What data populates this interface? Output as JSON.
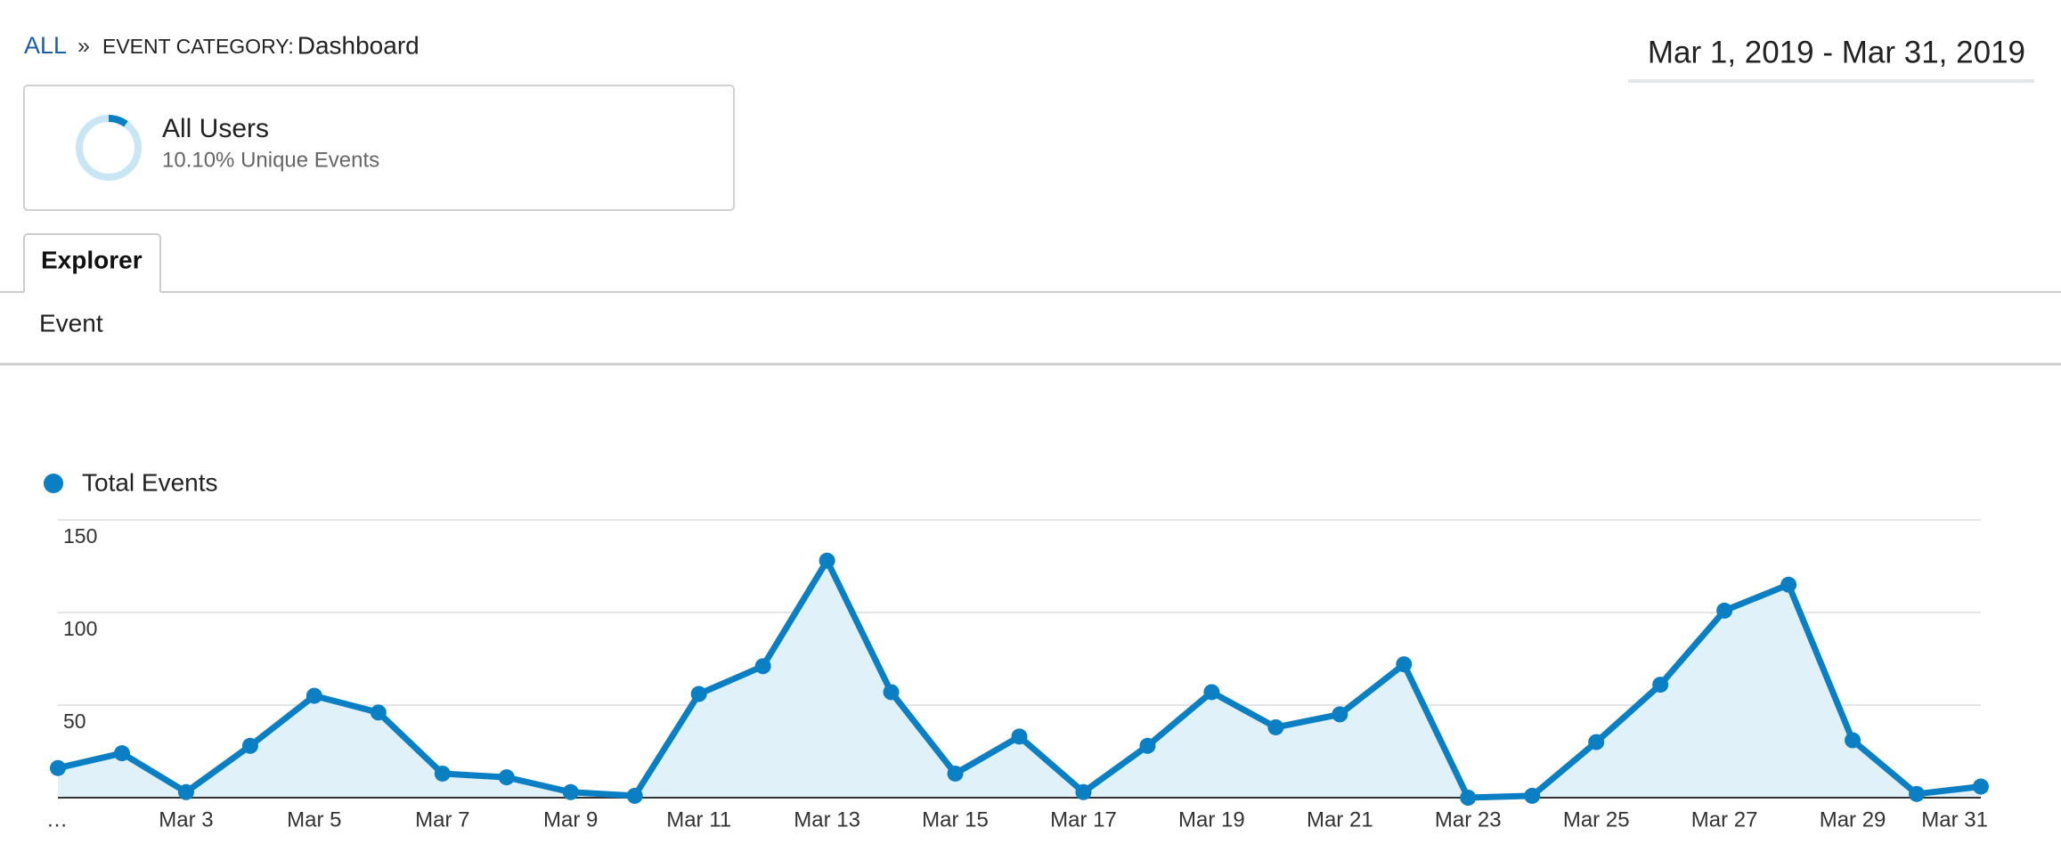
{
  "breadcrumb": {
    "root": "ALL",
    "separator": "»",
    "label": "EVENT CATEGORY:",
    "value": "Dashboard"
  },
  "date_range": "Mar 1, 2019 - Mar 31, 2019",
  "segment": {
    "name": "All Users",
    "detail": "10.10% Unique Events"
  },
  "tab": "Explorer",
  "dimension": "Event",
  "chart_data": {
    "type": "line",
    "categories": [
      "…",
      null,
      "Mar 3",
      null,
      "Mar 5",
      null,
      "Mar 7",
      null,
      "Mar 9",
      null,
      "Mar 11",
      null,
      "Mar 13",
      null,
      "Mar 15",
      null,
      "Mar 17",
      null,
      "Mar 19",
      null,
      "Mar 21",
      null,
      "Mar 23",
      null,
      "Mar 25",
      null,
      "Mar 27",
      null,
      "Mar 29",
      null,
      "Mar 31"
    ],
    "series": [
      {
        "name": "Total Events",
        "color": "#0a7fc4",
        "values": [
          16,
          24,
          3,
          28,
          55,
          46,
          13,
          11,
          3,
          1,
          56,
          71,
          128,
          57,
          13,
          33,
          3,
          28,
          57,
          38,
          45,
          72,
          0,
          1,
          30,
          61,
          101,
          115,
          31,
          2,
          6
        ]
      }
    ],
    "ylim": [
      0,
      150
    ],
    "yticks": [
      50,
      100,
      150
    ],
    "grid": true
  }
}
